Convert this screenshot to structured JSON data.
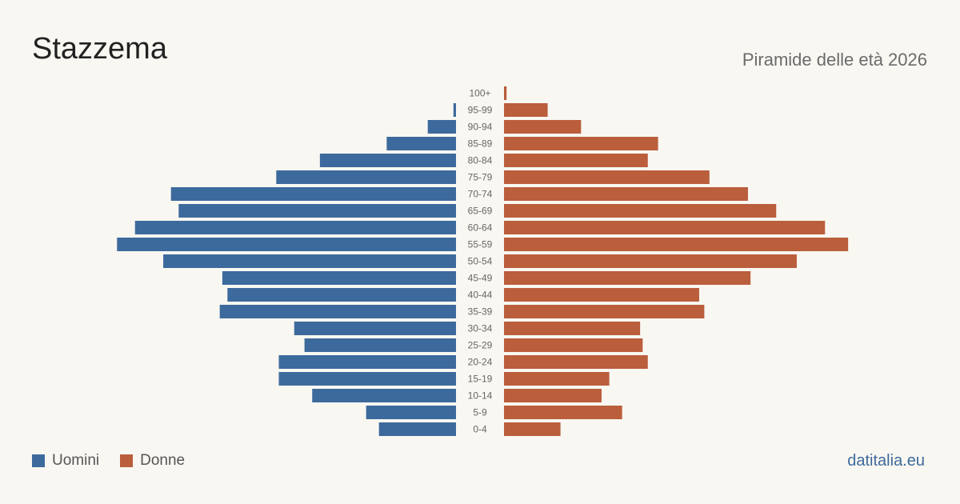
{
  "title": "Stazzema",
  "subtitle": "Piramide delle età 2026",
  "brand": "datitalia.eu",
  "legend": {
    "men": "Uomini",
    "women": "Donne"
  },
  "colors": {
    "men": "#3d6a9c",
    "women": "#ba5e3c",
    "background": "#f9f7f2"
  },
  "chart_data": {
    "type": "bar",
    "orientation": "horizontal",
    "title": "Stazzema",
    "subtitle": "Piramide delle età 2026",
    "categories": [
      "100+",
      "95-99",
      "90-94",
      "85-89",
      "80-84",
      "75-79",
      "70-74",
      "65-69",
      "60-64",
      "55-59",
      "50-54",
      "45-49",
      "40-44",
      "35-39",
      "30-34",
      "25-29",
      "20-24",
      "15-19",
      "10-14",
      "5-9",
      "0-4"
    ],
    "series": [
      {
        "name": "Uomini",
        "color": "#3d6a9c",
        "values": [
          0,
          1,
          11,
          27,
          53,
          70,
          111,
          108,
          125,
          132,
          114,
          91,
          89,
          92,
          63,
          59,
          69,
          69,
          56,
          35,
          30
        ]
      },
      {
        "name": "Donne",
        "color": "#ba5e3c",
        "values": [
          1,
          17,
          30,
          60,
          56,
          80,
          95,
          106,
          125,
          134,
          114,
          96,
          76,
          78,
          53,
          54,
          56,
          41,
          38,
          46,
          22
        ]
      }
    ],
    "legend_position": "bottom-left",
    "grid": false
  }
}
